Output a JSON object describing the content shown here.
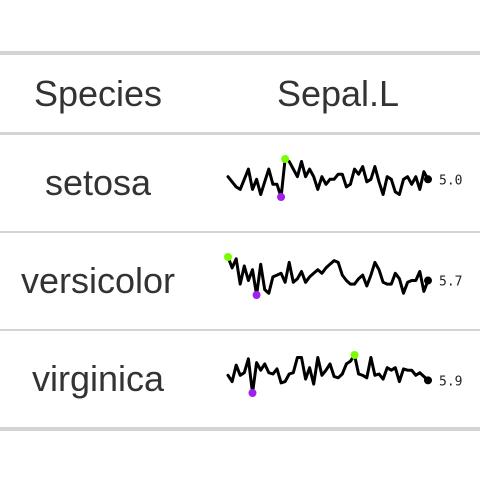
{
  "table": {
    "columns": [
      "Species",
      "Sepal.L"
    ]
  },
  "colors": {
    "line": "#000000",
    "max_marker": "#7cfc00",
    "min_marker": "#a020f0",
    "last_marker": "#000000",
    "rule": "#d3d3d3"
  },
  "chart_data": {
    "type": "table",
    "columns": [
      "Species",
      "Sepal.L"
    ],
    "rows": [
      {
        "species": "setosa",
        "last_label": "5.0",
        "values": [
          5.1,
          4.9,
          4.7,
          4.6,
          5.0,
          5.4,
          4.6,
          5.0,
          4.4,
          4.9,
          5.4,
          4.8,
          4.8,
          4.3,
          5.8,
          5.7,
          5.4,
          5.1,
          5.7,
          5.1,
          5.4,
          5.1,
          4.6,
          5.1,
          4.8,
          5.0,
          5.0,
          5.2,
          5.2,
          4.7,
          4.8,
          5.4,
          5.2,
          5.5,
          4.9,
          5.0,
          5.5,
          4.9,
          4.4,
          5.1,
          5.0,
          4.5,
          4.4,
          5.0,
          5.1,
          4.8,
          5.1,
          4.6,
          5.3,
          5.0
        ]
      },
      {
        "species": "versicolor",
        "last_label": "5.7",
        "values": [
          7.0,
          6.4,
          6.9,
          5.5,
          6.5,
          5.7,
          6.3,
          4.9,
          6.6,
          5.2,
          5.0,
          5.9,
          6.0,
          6.1,
          5.6,
          6.7,
          5.6,
          5.8,
          6.2,
          5.6,
          5.9,
          6.1,
          6.3,
          6.1,
          6.4,
          6.6,
          6.8,
          6.7,
          6.0,
          5.7,
          5.5,
          5.5,
          5.8,
          6.0,
          5.4,
          6.0,
          6.7,
          6.3,
          5.6,
          5.5,
          5.5,
          6.1,
          5.8,
          5.0,
          5.6,
          5.7,
          5.7,
          6.2,
          5.1,
          5.7
        ]
      },
      {
        "species": "virginica",
        "last_label": "5.9",
        "values": [
          6.3,
          5.8,
          7.1,
          6.3,
          6.5,
          7.6,
          4.9,
          7.3,
          6.7,
          7.2,
          6.5,
          6.4,
          6.8,
          5.7,
          5.8,
          6.4,
          6.5,
          7.7,
          7.7,
          6.0,
          6.9,
          5.6,
          7.7,
          6.3,
          6.7,
          7.2,
          6.2,
          6.1,
          6.4,
          7.2,
          7.4,
          7.9,
          6.4,
          6.3,
          6.1,
          7.7,
          6.3,
          6.4,
          6.0,
          6.9,
          6.7,
          6.9,
          5.8,
          6.8,
          6.7,
          6.7,
          6.3,
          6.5,
          6.2,
          5.9
        ]
      }
    ]
  }
}
